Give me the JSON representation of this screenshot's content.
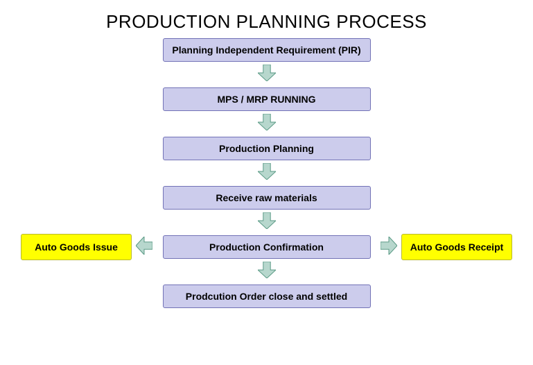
{
  "title": "PRODUCTION PLANNING PROCESS",
  "diagram": {
    "type": "flowchart",
    "background_color": "#ffffff",
    "title_fontsize": 26,
    "title_color": "#000000",
    "node_fontsize": 14,
    "node_font_weight": "bold",
    "main_node_width": 300,
    "side_node_width": 160,
    "main_node_fill": "#ccccec",
    "main_node_border": "#7272b6",
    "side_node_fill": "#ffff00",
    "side_node_border": "#b8b82e",
    "arrow_fill": "#b7d7cd",
    "arrow_stroke": "#5a9a85",
    "arrow_width": 26,
    "arrow_height": 24,
    "nodes": [
      {
        "id": "pir",
        "label": "Planning Independent Requirement  (PIR)",
        "type": "main"
      },
      {
        "id": "mps",
        "label": "MPS / MRP RUNNING",
        "type": "main"
      },
      {
        "id": "pp",
        "label": "Production Planning",
        "type": "main"
      },
      {
        "id": "raw",
        "label": "Receive raw materials",
        "type": "main"
      },
      {
        "id": "conf",
        "label": "Production Confirmation",
        "type": "main"
      },
      {
        "id": "close",
        "label": "Prodcution Order close and settled",
        "type": "main"
      },
      {
        "id": "issue",
        "label": "Auto Goods Issue",
        "type": "side-left"
      },
      {
        "id": "receipt",
        "label": "Auto Goods Receipt",
        "type": "side-right"
      }
    ],
    "edges": [
      {
        "from": "pir",
        "to": "mps",
        "dir": "down"
      },
      {
        "from": "mps",
        "to": "pp",
        "dir": "down"
      },
      {
        "from": "pp",
        "to": "raw",
        "dir": "down"
      },
      {
        "from": "raw",
        "to": "conf",
        "dir": "down"
      },
      {
        "from": "conf",
        "to": "close",
        "dir": "down"
      },
      {
        "from": "conf",
        "to": "issue",
        "dir": "left"
      },
      {
        "from": "conf",
        "to": "receipt",
        "dir": "right"
      }
    ]
  }
}
